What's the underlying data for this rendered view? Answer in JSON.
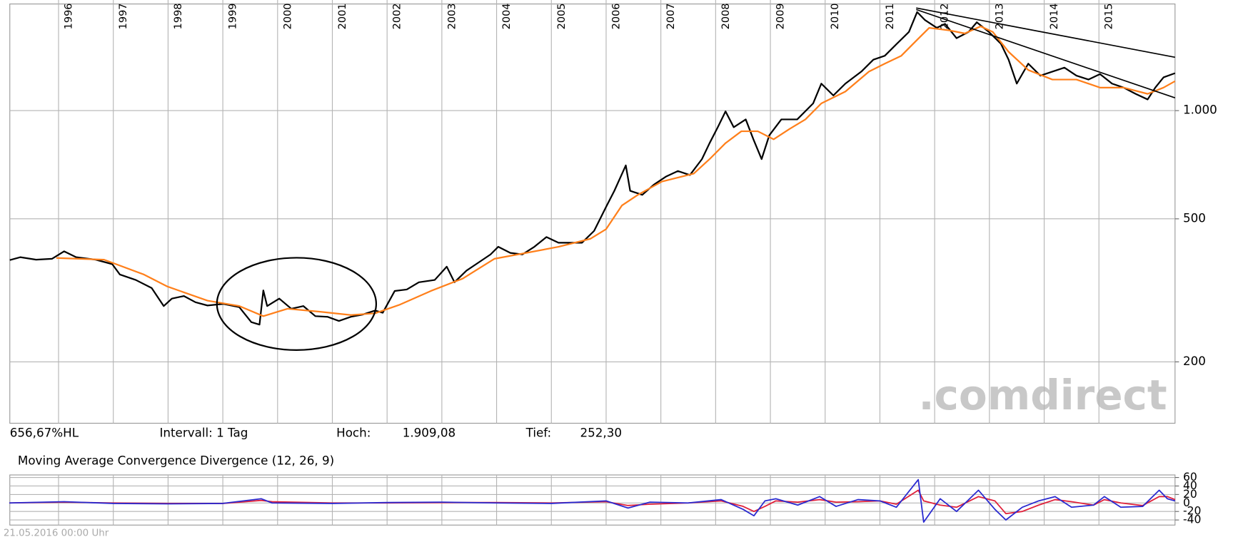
{
  "chart_data": [
    {
      "type": "line",
      "log": true,
      "grid": true,
      "xlim": [
        1995.11,
        2016.39
      ],
      "xticks": [
        1996,
        1997,
        1998,
        1999,
        2000,
        2001,
        2002,
        2003,
        2004,
        2005,
        2006,
        2007,
        2008,
        2009,
        2010,
        2011,
        2012,
        2013,
        2014,
        2015
      ],
      "ylim": [
        135,
        1980
      ],
      "yticks": [
        {
          "value": 1000,
          "label": "1.000"
        },
        500,
        200
      ],
      "series": [
        {
          "color": "#000000",
          "x": [
            1995.11,
            1995.3,
            1995.59,
            1995.88,
            1996.1,
            1996.32,
            1996.68,
            1996.98,
            1997.12,
            1997.41,
            1997.7,
            1997.92,
            1998.07,
            1998.29,
            1998.5,
            1998.72,
            1999.01,
            1999.3,
            1999.52,
            1999.67,
            1999.74,
            1999.81,
            2000.03,
            2000.25,
            2000.47,
            2000.69,
            2000.91,
            2001.12,
            2001.34,
            2001.56,
            2001.78,
            2001.92,
            2002.14,
            2002.36,
            2002.58,
            2002.87,
            2003.09,
            2003.23,
            2003.45,
            2003.67,
            2003.89,
            2004.03,
            2004.25,
            2004.47,
            2004.69,
            2004.91,
            2005.13,
            2005.34,
            2005.56,
            2005.78,
            2006.0,
            2006.15,
            2006.36,
            2006.44,
            2006.66,
            2006.87,
            2007.09,
            2007.31,
            2007.53,
            2007.75,
            2007.89,
            2008.04,
            2008.18,
            2008.33,
            2008.55,
            2008.69,
            2008.84,
            2008.98,
            2009.2,
            2009.49,
            2009.78,
            2009.93,
            2010.15,
            2010.37,
            2010.66,
            2010.88,
            2011.09,
            2011.31,
            2011.53,
            2011.68,
            2011.82,
            2012.04,
            2012.19,
            2012.4,
            2012.62,
            2012.77,
            2012.99,
            2013.21,
            2013.35,
            2013.5,
            2013.71,
            2013.93,
            2014.15,
            2014.37,
            2014.59,
            2014.81,
            2015.02,
            2015.24,
            2015.45,
            2015.67,
            2015.89,
            2016.03,
            2016.18,
            2016.39
          ],
          "values": [
            384,
            391,
            385,
            387,
            406,
            391,
            385,
            374,
            350,
            338,
            321,
            286,
            300,
            305,
            293,
            287,
            290,
            284,
            258,
            254,
            316,
            286,
            300,
            281,
            286,
            268,
            267,
            260,
            267,
            271,
            278,
            274,
            315,
            318,
            333,
            338,
            368,
            333,
            359,
            378,
            398,
            418,
            402,
            398,
            418,
            445,
            429,
            429,
            429,
            463,
            540,
            598,
            704,
            598,
            583,
            622,
            655,
            679,
            662,
            733,
            812,
            899,
            995,
            899,
            945,
            832,
            733,
            854,
            945,
            945,
            1047,
            1189,
            1102,
            1189,
            1284,
            1386,
            1421,
            1535,
            1656,
            1881,
            1788,
            1699,
            1743,
            1590,
            1656,
            1761,
            1656,
            1535,
            1386,
            1189,
            1351,
            1251,
            1284,
            1317,
            1251,
            1220,
            1264,
            1189,
            1159,
            1113,
            1074,
            1159,
            1238,
            1271
          ]
        },
        {
          "color": "#ff7f1a",
          "x": [
            1995.96,
            1996.83,
            1997.56,
            1997.99,
            1998.72,
            1999.3,
            1999.74,
            2000.18,
            2000.76,
            2001.34,
            2001.78,
            2002.22,
            2002.8,
            2003.38,
            2003.96,
            2004.54,
            2005.13,
            2005.71,
            2006.0,
            2006.29,
            2006.58,
            2007.02,
            2007.6,
            2007.89,
            2008.18,
            2008.47,
            2008.77,
            2009.06,
            2009.35,
            2009.64,
            2009.93,
            2010.37,
            2010.8,
            2011.09,
            2011.39,
            2011.68,
            2011.9,
            2012.26,
            2012.55,
            2012.84,
            2013.06,
            2013.35,
            2013.71,
            2014.15,
            2014.59,
            2015.02,
            2015.45,
            2015.89,
            2016.18,
            2016.39
          ],
          "values": [
            389,
            385,
            350,
            324,
            296,
            286,
            268,
            281,
            276,
            270,
            273,
            288,
            315,
            341,
            387,
            402,
            418,
            440,
            468,
            545,
            583,
            635,
            668,
            733,
            812,
            876,
            876,
            832,
            889,
            945,
            1047,
            1130,
            1284,
            1351,
            1421,
            1574,
            1699,
            1673,
            1640,
            1716,
            1656,
            1458,
            1297,
            1220,
            1220,
            1159,
            1159,
            1113,
            1159,
            1208
          ]
        }
      ]
    },
    {
      "type": "line",
      "title": "Moving Average Convergence Divergence (12, 26, 9)",
      "grid": true,
      "xlim": [
        1995.11,
        2016.39
      ],
      "xticks": [
        1996,
        1997,
        1998,
        1999,
        2000,
        2001,
        2002,
        2003,
        2004,
        2005,
        2006,
        2007,
        2008,
        2009,
        2010,
        2011,
        2012,
        2013,
        2014,
        2015
      ],
      "ylim": [
        -52,
        66
      ],
      "yticks": [
        60,
        40,
        20,
        0,
        -20,
        -40
      ],
      "x": [
        1995.1,
        1996.1,
        1997,
        1998,
        1999,
        1999.7,
        1999.9,
        2001,
        2002,
        2003,
        2004,
        2005,
        2006,
        2006.4,
        2006.8,
        2007.5,
        2008.1,
        2008.5,
        2008.7,
        2008.9,
        2009.1,
        2009.5,
        2009.9,
        2010.2,
        2010.6,
        2011,
        2011.3,
        2011.7,
        2011.8,
        2012.1,
        2012.4,
        2012.8,
        2013.1,
        2013.3,
        2013.6,
        2013.9,
        2014.2,
        2014.5,
        2014.9,
        2015.1,
        2015.4,
        2015.8,
        2016.1,
        2016.25,
        2016.39
      ],
      "series": [
        {
          "color": "#e0203a",
          "values": [
            0,
            2,
            0,
            -1,
            -1,
            6,
            3,
            0,
            0,
            1,
            1,
            0,
            3,
            -6,
            -3,
            0,
            5,
            -8,
            -20,
            -8,
            5,
            2,
            8,
            2,
            3,
            5,
            -3,
            30,
            5,
            -5,
            -10,
            15,
            5,
            -25,
            -20,
            -5,
            8,
            3,
            -5,
            8,
            0,
            -6,
            15,
            15,
            8
          ]
        },
        {
          "color": "#2a2ad0",
          "values": [
            0,
            3,
            -1,
            -2,
            -1,
            10,
            0,
            -1,
            1,
            2,
            0,
            -1,
            5,
            -12,
            2,
            0,
            8,
            -15,
            -30,
            5,
            10,
            -5,
            15,
            -8,
            8,
            5,
            -10,
            55,
            -45,
            10,
            -20,
            30,
            -15,
            -40,
            -10,
            5,
            15,
            -10,
            -5,
            15,
            -10,
            -8,
            30,
            10,
            5
          ]
        }
      ]
    }
  ],
  "info": [
    "656,67%HL",
    "Intervall: 1 Tag",
    "Hoch:",
    "1.909,08",
    "Tief:",
    "252,30"
  ],
  "watermark": ".comdirect",
  "date": "21.05.2016 00:00 Uhr"
}
